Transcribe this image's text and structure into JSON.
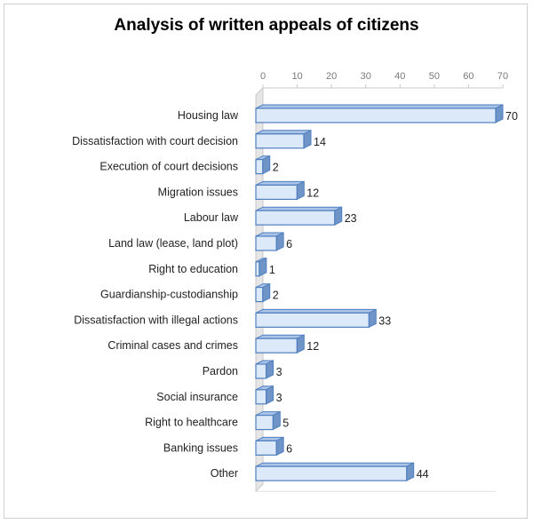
{
  "chart_data": {
    "type": "bar",
    "orientation": "horizontal",
    "title": "Analysis of written appeals of citizens",
    "categories": [
      "Housing law",
      "Dissatisfaction with court decision",
      "Execution of court decisions",
      "Migration issues",
      "Labour law",
      "Land law (lease, land plot)",
      "Right to education",
      "Guardianship-custodianship",
      "Dissatisfaction with illegal actions",
      "Criminal cases and crimes",
      "Pardon",
      "Social insurance",
      "Right to healthcare",
      "Banking issues",
      "Other"
    ],
    "values": [
      70,
      14,
      2,
      12,
      23,
      6,
      1,
      2,
      33,
      12,
      3,
      3,
      5,
      6,
      44
    ],
    "xlim": [
      0,
      70
    ],
    "xticks": [
      0,
      10,
      20,
      30,
      40,
      50,
      60,
      70
    ],
    "xaxis_position": "top",
    "style": "3d-bar",
    "colors": {
      "face": "#dce9f8",
      "top": "#a9c4e6",
      "side": "#6f95c8",
      "edge": "#4f7fbf"
    },
    "grid": false,
    "legend": "none"
  }
}
